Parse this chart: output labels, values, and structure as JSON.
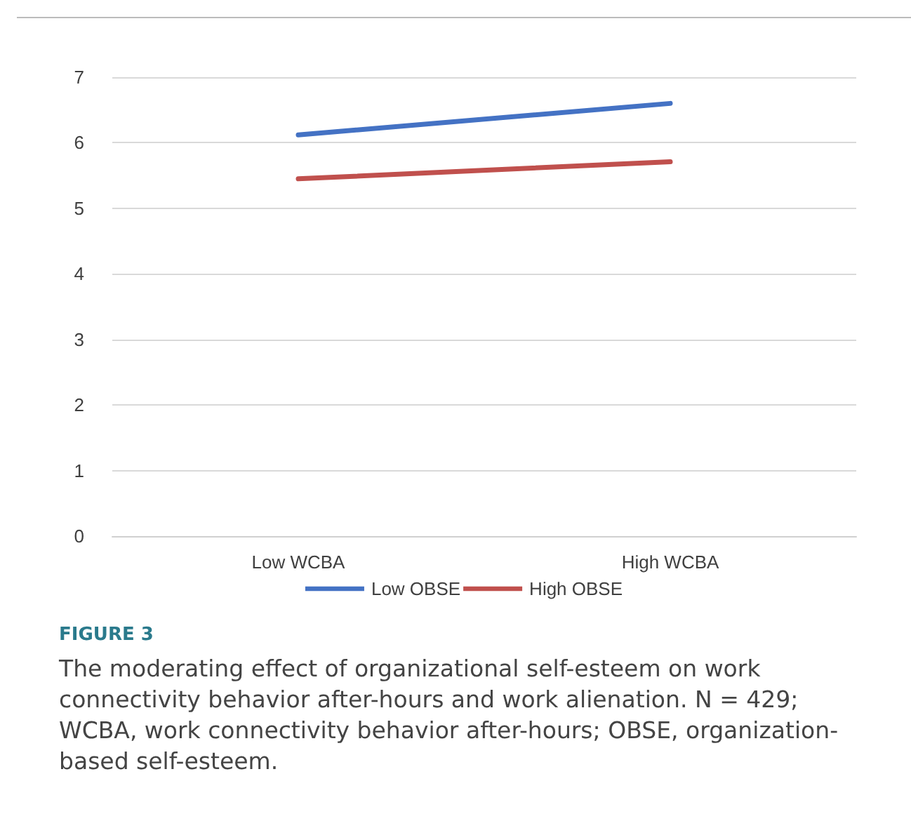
{
  "chart_data": {
    "type": "line",
    "categories": [
      "Low WCBA",
      "High WCBA"
    ],
    "series": [
      {
        "name": "Low OBSE",
        "color": "#4472c4",
        "values": [
          6.12,
          6.6
        ]
      },
      {
        "name": "High OBSE",
        "color": "#c0504d",
        "values": [
          5.45,
          5.71
        ]
      }
    ],
    "ylim": [
      0,
      7
    ],
    "yticks": [
      0,
      1,
      2,
      3,
      4,
      5,
      6,
      7
    ],
    "grid": "y",
    "legend": "bottom",
    "marker": "none",
    "line_style": "solid",
    "annotations": [
      "FIGURE 3",
      "The moderating effect of organizational self-esteem on work connectivity behavior after-hours and work alienation. N = 429; WCBA, work connectivity behavior after-hours; OBSE, organization-based self-esteem."
    ]
  }
}
